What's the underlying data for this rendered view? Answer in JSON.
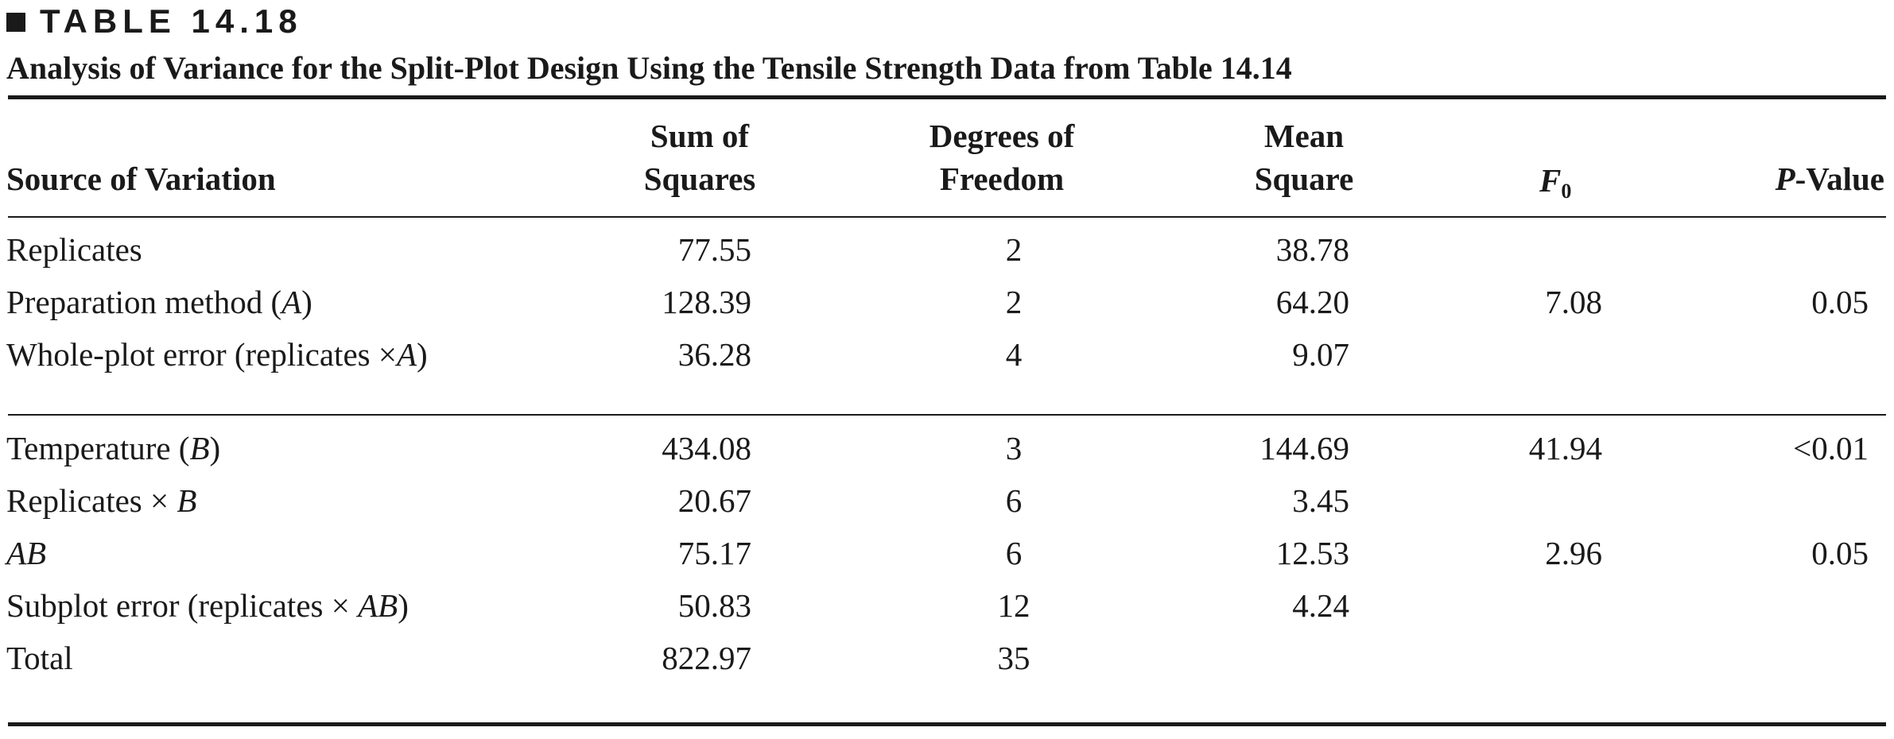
{
  "table_label": "TABLE 14.18",
  "caption": "Analysis of Variance for the Split-Plot Design Using the Tensile Strength Data from Table 14.14",
  "headers": {
    "source": "Source of Variation",
    "ss_line1": "Sum of",
    "ss_line2": "Squares",
    "df_line1": "Degrees of",
    "df_line2": "Freedom",
    "ms_line1": "Mean",
    "ms_line2": "Square",
    "f_main": "F",
    "f_sub": "0",
    "p_italic": "P",
    "p_rest": "-Value"
  },
  "rows": [
    {
      "source_pre": "Replicates",
      "source_it": "",
      "source_post": "",
      "ss": "77.55",
      "df": "2",
      "ms": "38.78",
      "f0": "",
      "p": ""
    },
    {
      "source_pre": "Preparation method (",
      "source_it": "A",
      "source_post": ")",
      "ss": "128.39",
      "df": "2",
      "ms": "64.20",
      "f0": "7.08",
      "p": "0.05"
    },
    {
      "source_pre": "Whole-plot error (replicates ×",
      "source_it": "A",
      "source_post": ")",
      "ss": "36.28",
      "df": "4",
      "ms": "9.07",
      "f0": "",
      "p": ""
    },
    {
      "source_pre": "Temperature (",
      "source_it": "B",
      "source_post": ")",
      "ss": "434.08",
      "df": "3",
      "ms": "144.69",
      "f0": "41.94",
      "p": "<0.01"
    },
    {
      "source_pre": "Replicates × ",
      "source_it": "B",
      "source_post": "",
      "ss": "20.67",
      "df": "6",
      "ms": "3.45",
      "f0": "",
      "p": ""
    },
    {
      "source_pre": "",
      "source_it": "AB",
      "source_post": "",
      "ss": "75.17",
      "df": "6",
      "ms": "12.53",
      "f0": "2.96",
      "p": "0.05"
    },
    {
      "source_pre": "Subplot error (replicates × ",
      "source_it": "AB",
      "source_post": ")",
      "ss": "50.83",
      "df": "12",
      "ms": "4.24",
      "f0": "",
      "p": ""
    },
    {
      "source_pre": "Total",
      "source_it": "",
      "source_post": "",
      "ss": "822.97",
      "df": "35",
      "ms": "",
      "f0": "",
      "p": ""
    }
  ]
}
